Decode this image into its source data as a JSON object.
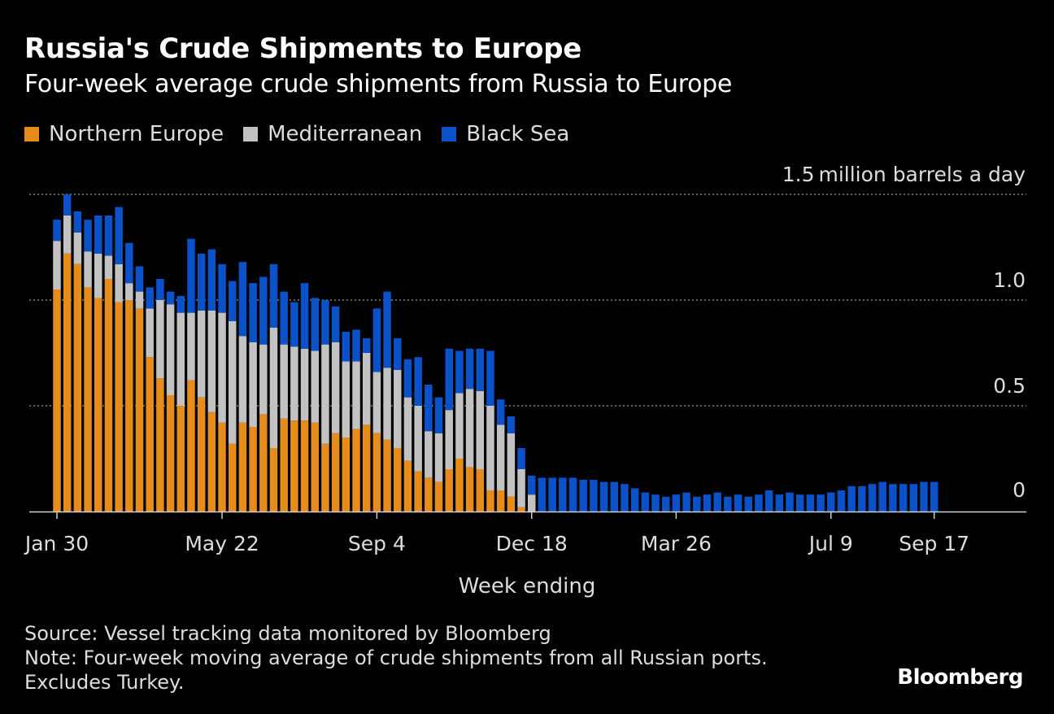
{
  "chart_data": {
    "type": "bar",
    "stacked": true,
    "title": "Russia's Crude Shipments to Europe",
    "subtitle": "Four-week average crude shipments from Russia to Europe",
    "ylabel": "million barrels a day",
    "xlabel": "Week ending",
    "ylim": [
      0,
      1.5
    ],
    "y_ticks": [
      {
        "value": 1.5,
        "label": "1.5"
      },
      {
        "value": 1.0,
        "label": "1.0"
      },
      {
        "value": 0.5,
        "label": "0.5"
      },
      {
        "value": 0,
        "label": "0"
      }
    ],
    "y_unit_label": "million barrels a day",
    "x_ticks": [
      {
        "index": 0,
        "label": "Jan 30"
      },
      {
        "index": 16,
        "label": "May 22"
      },
      {
        "index": 31,
        "label": "Sep 4"
      },
      {
        "index": 46,
        "label": "Dec 18"
      },
      {
        "index": 60,
        "label": "Mar 26"
      },
      {
        "index": 75,
        "label": "Jul 9"
      },
      {
        "index": 85,
        "label": "Sep 17"
      }
    ],
    "legend": [
      {
        "name": "Northern Europe",
        "color": "#e58c1d"
      },
      {
        "name": "Mediterranean",
        "color": "#c2c2c2"
      },
      {
        "name": "Black Sea",
        "color": "#0b52c9"
      }
    ],
    "series": [
      {
        "name": "Northern Europe",
        "color": "#e58c1d",
        "values": [
          1.05,
          1.22,
          1.17,
          1.06,
          1.01,
          1.1,
          0.99,
          1.0,
          0.96,
          0.73,
          0.63,
          0.55,
          0.5,
          0.62,
          0.54,
          0.47,
          0.42,
          0.32,
          0.42,
          0.4,
          0.46,
          0.3,
          0.44,
          0.43,
          0.43,
          0.42,
          0.32,
          0.37,
          0.35,
          0.39,
          0.41,
          0.37,
          0.34,
          0.3,
          0.24,
          0.19,
          0.16,
          0.14,
          0.2,
          0.25,
          0.21,
          0.2,
          0.1,
          0.1,
          0.07,
          0.02,
          0,
          0,
          0,
          0,
          0,
          0,
          0,
          0,
          0,
          0,
          0,
          0,
          0,
          0,
          0,
          0,
          0,
          0,
          0,
          0,
          0,
          0,
          0,
          0,
          0,
          0,
          0,
          0,
          0,
          0,
          0,
          0,
          0,
          0,
          0,
          0,
          0,
          0,
          0,
          0,
          0
        ]
      },
      {
        "name": "Mediterranean",
        "color": "#c2c2c2",
        "values": [
          0.23,
          0.18,
          0.15,
          0.17,
          0.21,
          0.11,
          0.18,
          0.08,
          0.08,
          0.23,
          0.37,
          0.43,
          0.44,
          0.32,
          0.41,
          0.48,
          0.52,
          0.58,
          0.41,
          0.4,
          0.33,
          0.57,
          0.35,
          0.35,
          0.34,
          0.34,
          0.47,
          0.43,
          0.36,
          0.32,
          0.34,
          0.29,
          0.34,
          0.37,
          0.3,
          0.31,
          0.22,
          0.23,
          0.28,
          0.31,
          0.37,
          0.37,
          0.4,
          0.31,
          0.3,
          0.18,
          0.08,
          0,
          0,
          0,
          0,
          0,
          0,
          0,
          0,
          0,
          0,
          0,
          0,
          0,
          0,
          0,
          0,
          0,
          0,
          0,
          0,
          0,
          0,
          0,
          0,
          0,
          0,
          0,
          0,
          0,
          0,
          0,
          0,
          0,
          0,
          0,
          0,
          0,
          0,
          0,
          0
        ]
      },
      {
        "name": "Black Sea",
        "color": "#0b52c9",
        "values": [
          0.1,
          0.1,
          0.1,
          0.15,
          0.18,
          0.19,
          0.27,
          0.19,
          0.12,
          0.1,
          0.1,
          0.06,
          0.08,
          0.35,
          0.27,
          0.29,
          0.23,
          0.19,
          0.35,
          0.28,
          0.32,
          0.3,
          0.25,
          0.21,
          0.31,
          0.25,
          0.21,
          0.17,
          0.14,
          0.15,
          0.07,
          0.3,
          0.36,
          0.15,
          0.18,
          0.23,
          0.22,
          0.17,
          0.29,
          0.2,
          0.19,
          0.2,
          0.26,
          0.12,
          0.08,
          0.1,
          0.09,
          0.16,
          0.16,
          0.16,
          0.16,
          0.15,
          0.15,
          0.14,
          0.14,
          0.13,
          0.11,
          0.09,
          0.08,
          0.07,
          0.08,
          0.09,
          0.07,
          0.08,
          0.09,
          0.07,
          0.08,
          0.07,
          0.08,
          0.1,
          0.08,
          0.09,
          0.08,
          0.08,
          0.08,
          0.09,
          0.1,
          0.12,
          0.12,
          0.13,
          0.14,
          0.13,
          0.13,
          0.13,
          0.14,
          0.14
        ]
      }
    ]
  },
  "footer": {
    "source": "Source: Vessel tracking data monitored by Bloomberg",
    "note_line1": "Note: Four-week moving average of crude shipments from all Russian ports.",
    "note_line2": "Excludes Turkey.",
    "logo": "Bloomberg"
  }
}
